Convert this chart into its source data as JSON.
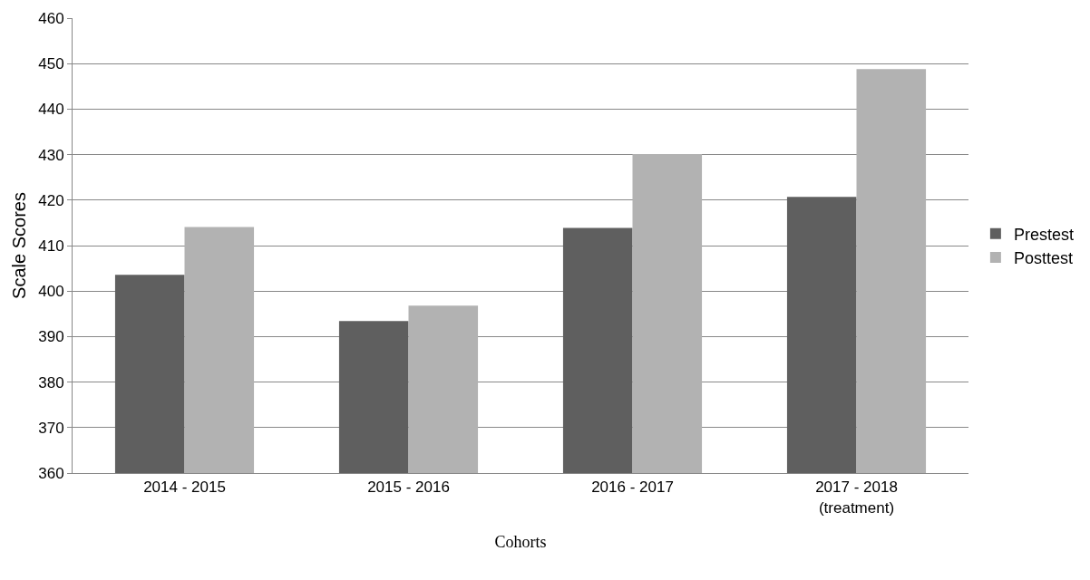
{
  "chart_data": {
    "type": "bar",
    "xlabel": "Cohorts",
    "ylabel": "Scale Scores",
    "categories": [
      "2014 - 2015",
      "2015 - 2016",
      "2016 - 2017",
      "2017 - 2018\n(treatment)"
    ],
    "series": [
      {
        "name": "Prestest",
        "color": "#5f5f5f",
        "values": [
          403.6,
          393.4,
          413.9,
          420.7
        ]
      },
      {
        "name": "Posttest",
        "color": "#b2b2b2",
        "values": [
          414.1,
          396.8,
          430.1,
          448.8
        ]
      }
    ],
    "ylim": [
      360,
      460
    ],
    "yticks": [
      360,
      370,
      380,
      390,
      400,
      410,
      420,
      430,
      440,
      450,
      460
    ],
    "grid": "y",
    "legend": "right"
  }
}
